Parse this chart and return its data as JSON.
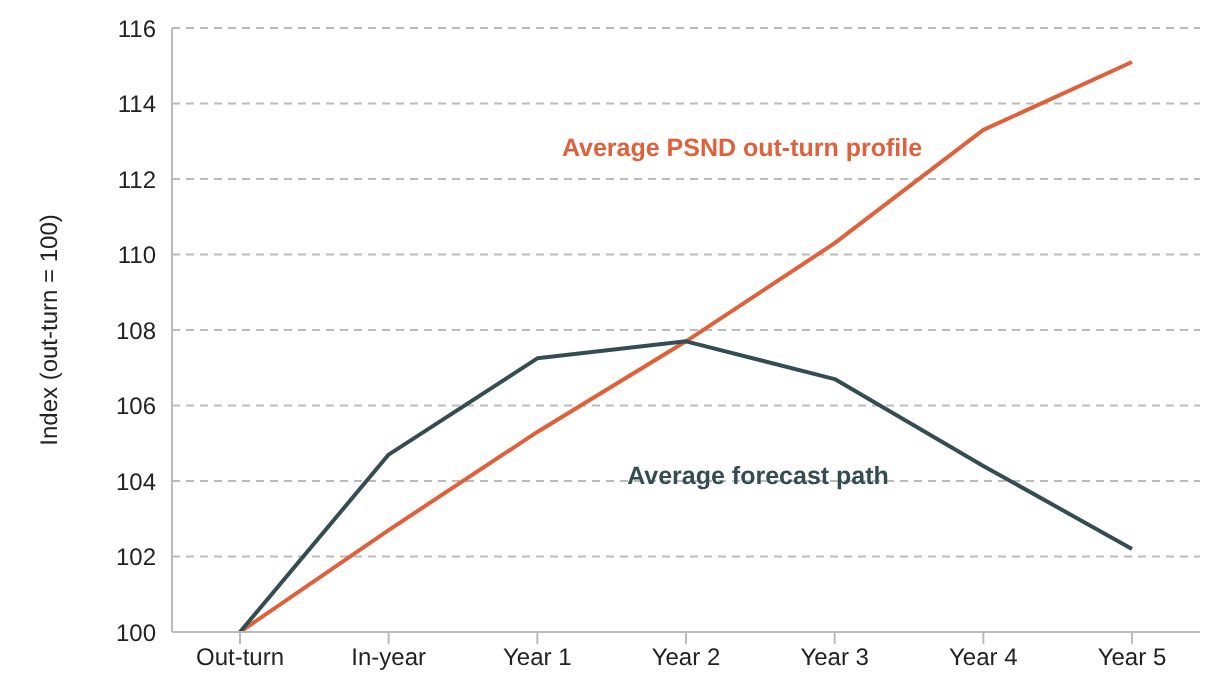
{
  "chart_data": {
    "type": "line",
    "ylabel": "Index (out-turn = 100)",
    "categories": [
      "Out-turn",
      "In-year",
      "Year 1",
      "Year 2",
      "Year 3",
      "Year 4",
      "Year 5"
    ],
    "series": [
      {
        "name": "Average PSND out-turn profile",
        "color": "#e0603a",
        "values": [
          100,
          102.7,
          105.3,
          107.7,
          110.3,
          113.3,
          115.1
        ]
      },
      {
        "name": "Average forecast path",
        "color": "#344d52",
        "values": [
          100,
          104.7,
          107.25,
          107.7,
          106.7,
          104.4,
          102.2
        ]
      }
    ],
    "ylim": [
      100,
      116
    ],
    "yticks": [
      100,
      102,
      104,
      106,
      108,
      110,
      112,
      114,
      116
    ],
    "grid": "y",
    "legend": false,
    "marker": "none",
    "line_style": "solid"
  }
}
